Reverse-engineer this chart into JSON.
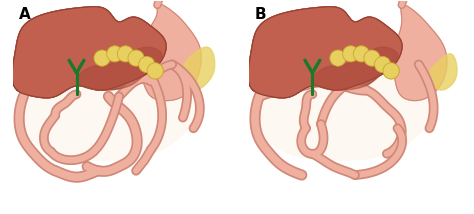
{
  "figsize": [
    4.74,
    2.14
  ],
  "dpi": 100,
  "bg_color": "#ffffff",
  "label_A": "A",
  "label_B": "B",
  "label_fontsize": 11,
  "label_fontweight": "bold",
  "liver_color": "#c26050",
  "liver_color2": "#a84838",
  "liver_edge": "#904030",
  "intestine_fill": "#f0b0a0",
  "intestine_edge": "#d08878",
  "intestine_lw": 2.5,
  "stomach_fill": "#f0b0a0",
  "stomach_edge": "#d08878",
  "pancreas_fill": "#e8d060",
  "pancreas_edge": "#c8a830",
  "bile_color": "#1a7a2a",
  "bg_cream": "#fdf5e6",
  "suture_color": "#c08878"
}
